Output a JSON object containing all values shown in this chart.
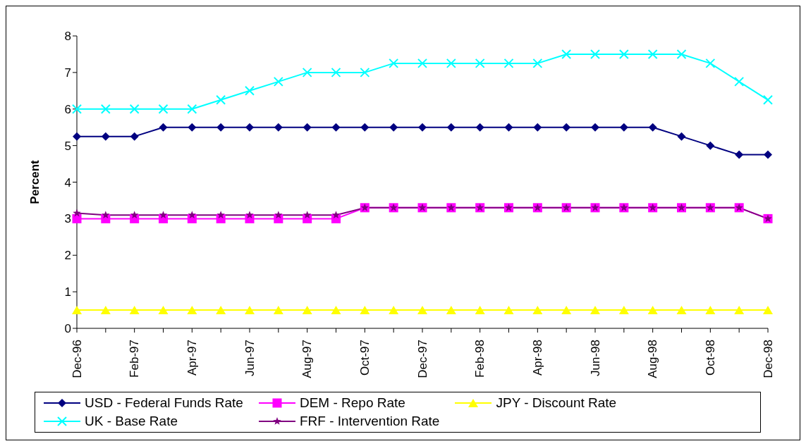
{
  "chart_data": {
    "type": "line",
    "ylabel": "Percent",
    "categories": [
      "Dec-96",
      null,
      "Feb-97",
      null,
      "Apr-97",
      null,
      "Jun-97",
      null,
      "Aug-97",
      null,
      "Oct-97",
      null,
      "Dec-97",
      null,
      "Feb-98",
      null,
      "Apr-98",
      null,
      "Jun-98",
      null,
      "Aug-98",
      null,
      "Oct-98",
      null,
      "Dec-98"
    ],
    "series": [
      {
        "name": "USD - Federal Funds Rate",
        "color": "#000080",
        "marker": "diamond",
        "values": [
          5.25,
          5.25,
          5.25,
          5.5,
          5.5,
          5.5,
          5.5,
          5.5,
          5.5,
          5.5,
          5.5,
          5.5,
          5.5,
          5.5,
          5.5,
          5.5,
          5.5,
          5.5,
          5.5,
          5.5,
          5.5,
          5.25,
          5.0,
          4.75,
          4.75
        ]
      },
      {
        "name": "DEM - Repo Rate",
        "color": "#ff00ff",
        "marker": "square",
        "values": [
          3.0,
          3.0,
          3.0,
          3.0,
          3.0,
          3.0,
          3.0,
          3.0,
          3.0,
          3.0,
          3.3,
          3.3,
          3.3,
          3.3,
          3.3,
          3.3,
          3.3,
          3.3,
          3.3,
          3.3,
          3.3,
          3.3,
          3.3,
          3.3,
          3.0
        ]
      },
      {
        "name": "JPY - Discount Rate",
        "color": "#ffff00",
        "marker": "triangle",
        "values": [
          0.5,
          0.5,
          0.5,
          0.5,
          0.5,
          0.5,
          0.5,
          0.5,
          0.5,
          0.5,
          0.5,
          0.5,
          0.5,
          0.5,
          0.5,
          0.5,
          0.5,
          0.5,
          0.5,
          0.5,
          0.5,
          0.5,
          0.5,
          0.5,
          0.5
        ]
      },
      {
        "name": "UK - Base Rate",
        "color": "#00ffff",
        "marker": "cross",
        "values": [
          6,
          6,
          6,
          6,
          6,
          6.25,
          6.5,
          6.75,
          7,
          7,
          7,
          7.25,
          7.25,
          7.25,
          7.25,
          7.25,
          7.25,
          7.5,
          7.5,
          7.5,
          7.5,
          7.5,
          7.25,
          6.75,
          6.25
        ]
      },
      {
        "name": "FRF - Intervention Rate",
        "color": "#800080",
        "marker": "star",
        "values": [
          3.15,
          3.1,
          3.1,
          3.1,
          3.1,
          3.1,
          3.1,
          3.1,
          3.1,
          3.1,
          3.3,
          3.3,
          3.3,
          3.3,
          3.3,
          3.3,
          3.3,
          3.3,
          3.3,
          3.3,
          3.3,
          3.3,
          3.3,
          3.3,
          3.0
        ]
      }
    ],
    "ylim": [
      0,
      8
    ],
    "yticks": [
      0,
      1,
      2,
      3,
      4,
      5,
      6,
      7,
      8
    ],
    "grid": false,
    "legend": "bottom",
    "line_style": "solid"
  }
}
